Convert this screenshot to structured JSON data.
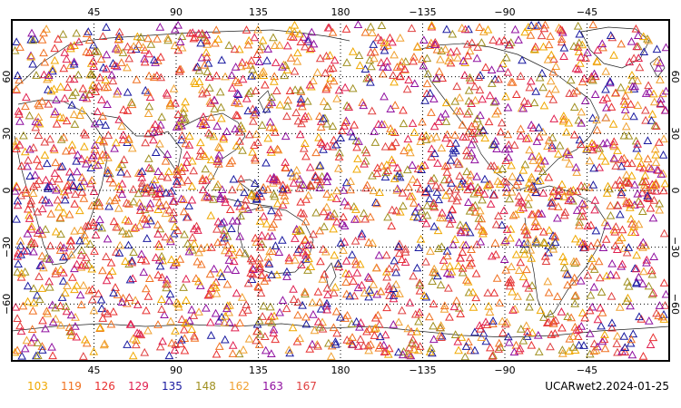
{
  "map": {
    "projection": "equirectangular",
    "central_longitude": 180,
    "lon_range": [
      0,
      360
    ],
    "lat_range": [
      -90,
      90
    ],
    "gridlines": "dotted",
    "grid": {
      "lon_values": [
        45,
        90,
        135,
        180,
        225,
        270,
        315
      ],
      "lat_values": [
        60,
        30,
        0,
        -30,
        -60
      ]
    },
    "top_lon_labels": [
      "45",
      "90",
      "135",
      "180",
      "−135",
      "−90",
      "−45"
    ],
    "bottom_lon_labels": [
      "45",
      "90",
      "135",
      "180",
      "−135",
      "−90",
      "−45"
    ],
    "left_lat_labels": [
      "60",
      "30",
      "0",
      "−30",
      "−60"
    ],
    "right_lat_labels": [
      "60",
      "30",
      "0",
      "−30",
      "−60"
    ],
    "marker_shape": "triangle-outline",
    "frame_color": "#000000",
    "coastline_color": "#222222"
  },
  "legend": [
    {
      "label": "103",
      "color": "#f0a800"
    },
    {
      "label": "119",
      "color": "#f07020"
    },
    {
      "label": "126",
      "color": "#e83030"
    },
    {
      "label": "129",
      "color": "#e02050"
    },
    {
      "label": "135",
      "color": "#1a1aa0"
    },
    {
      "label": "148",
      "color": "#a09020"
    },
    {
      "label": "162",
      "color": "#f0a030"
    },
    {
      "label": "163",
      "color": "#9010a0"
    },
    {
      "label": "167",
      "color": "#e04040"
    }
  ],
  "footer": {
    "product_label": "UCARwet2.2024-01-25"
  }
}
